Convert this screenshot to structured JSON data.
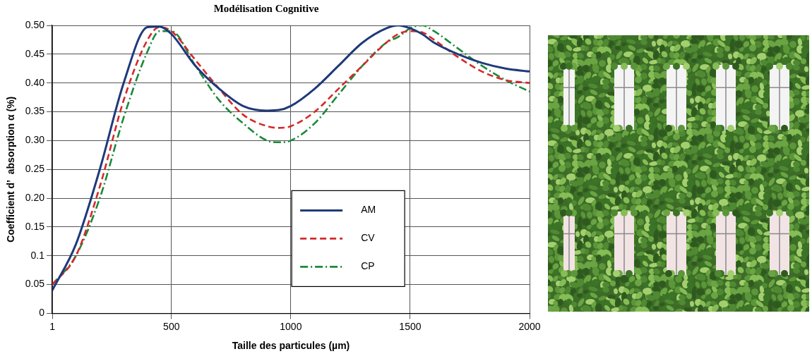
{
  "chart_data": {
    "type": "line",
    "title": "Modélisation Cognitive",
    "x_label": "Taille des particules (µm)",
    "y_label": "Coefficient d’  absorption α (%)",
    "x": [
      1,
      100,
      200,
      300,
      400,
      450,
      500,
      600,
      700,
      800,
      900,
      950,
      1000,
      1100,
      1200,
      1300,
      1400,
      1450,
      1500,
      1550,
      1600,
      1700,
      1800,
      1900,
      2000
    ],
    "series": [
      {
        "name": "AM",
        "color": "#1f3a7a",
        "line_style": "solid",
        "values": [
          0.04,
          0.12,
          0.25,
          0.4,
          0.497,
          0.498,
          0.485,
          0.43,
          0.39,
          0.36,
          0.352,
          0.353,
          0.36,
          0.39,
          0.43,
          0.47,
          0.495,
          0.5,
          0.495,
          0.485,
          0.47,
          0.45,
          0.435,
          0.425,
          0.42
        ]
      },
      {
        "name": "CV",
        "color": "#d42a2a",
        "line_style": "dashed",
        "values": [
          0.05,
          0.1,
          0.22,
          0.37,
          0.475,
          0.497,
          0.49,
          0.44,
          0.39,
          0.345,
          0.325,
          0.322,
          0.325,
          0.35,
          0.39,
          0.43,
          0.47,
          0.485,
          0.49,
          0.488,
          0.475,
          0.445,
          0.42,
          0.405,
          0.4
        ]
      },
      {
        "name": "CP",
        "color": "#1a8a3a",
        "line_style": "dashdot",
        "values": [
          0.05,
          0.1,
          0.2,
          0.34,
          0.455,
          0.49,
          0.49,
          0.43,
          0.37,
          0.33,
          0.3,
          0.297,
          0.3,
          0.33,
          0.38,
          0.43,
          0.47,
          0.48,
          0.495,
          0.5,
          0.49,
          0.46,
          0.43,
          0.405,
          0.385
        ]
      }
    ],
    "xlim": [
      1,
      2000
    ],
    "xticks": [
      1,
      500,
      1000,
      1500,
      2000
    ],
    "ylim": [
      0,
      0.5
    ],
    "yticks": [
      0,
      0.05,
      0.1,
      0.15,
      {
        "value": 0.2,
        "label": "0.20"
      },
      0.25,
      {
        "value": 0.3,
        "label": "0.30"
      },
      0.35,
      {
        "value": 0.4,
        "label": "0.40"
      },
      0.45,
      {
        "value": 0.5,
        "label": "0.50"
      }
    ],
    "grid": true,
    "legend": "lower center"
  }
}
